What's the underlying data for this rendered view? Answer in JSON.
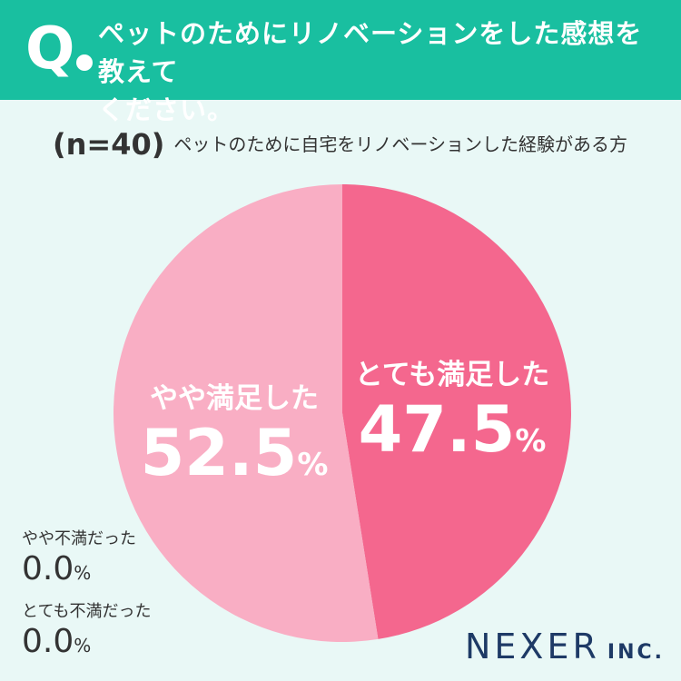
{
  "header": {
    "q_mark": "Q",
    "question_line1": "ペットのためにリノベーションをした感想を教えて",
    "question_line2": "ください。"
  },
  "subtitle": {
    "n": "(n=40)",
    "text": "ペットのために自宅をリノベーションした経験がある方"
  },
  "chart_data": {
    "type": "pie",
    "title": "",
    "categories": [
      "とても満足した",
      "やや満足した",
      "やや不満だった",
      "とても不満だった"
    ],
    "values": [
      47.5,
      52.5,
      0.0,
      0.0
    ],
    "unit": "%",
    "start_angle_deg": 0,
    "direction": "clockwise",
    "colors": [
      "#f4678e",
      "#f9aec4",
      "#f9aec4",
      "#f9aec4"
    ],
    "labels": [
      {
        "name": "とても満足した",
        "value": "47.5",
        "unit": "%"
      },
      {
        "name": "やや満足した",
        "value": "52.5",
        "unit": "%"
      },
      {
        "name": "やや不満だった",
        "value": "0.0",
        "unit": "%"
      },
      {
        "name": "とても不満だった",
        "value": "0.0",
        "unit": "%"
      }
    ]
  },
  "logo": {
    "main": "NEXER",
    "suffix": "INC."
  },
  "colors": {
    "header_bg": "#19bfa0",
    "page_bg": "#e9f8f6",
    "text": "#333333",
    "logo": "#1e3a66"
  }
}
